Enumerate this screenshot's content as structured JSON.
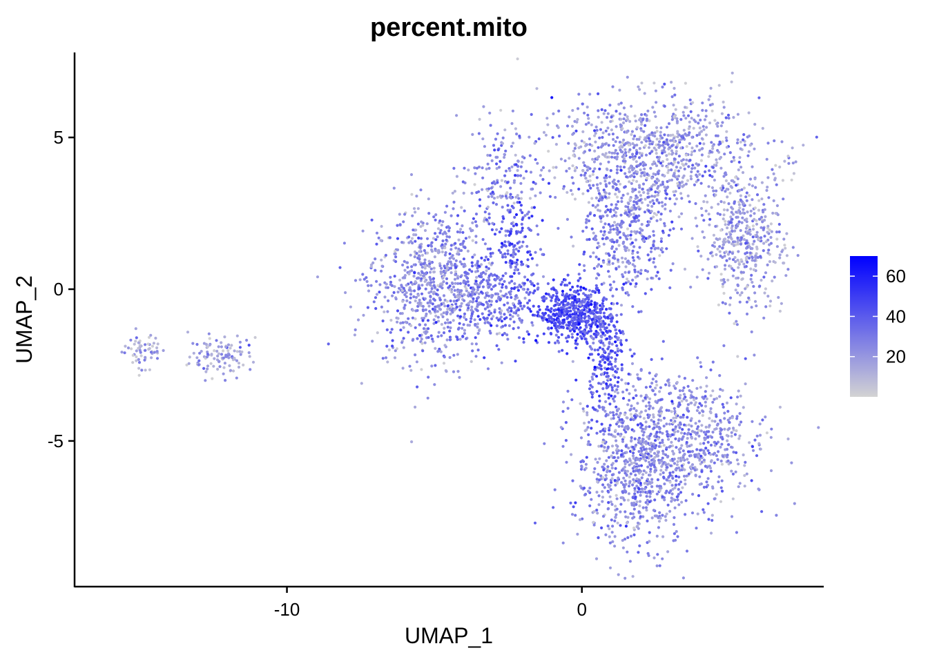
{
  "chart_data": {
    "type": "scatter",
    "title": "percent.mito",
    "xlabel": "UMAP_1",
    "ylabel": "UMAP_2",
    "xlim": [
      -17.2,
      8.2
    ],
    "ylim": [
      -9.8,
      7.8
    ],
    "x_ticks": [
      {
        "value": -10,
        "label": "-10"
      },
      {
        "value": 0,
        "label": "0"
      }
    ],
    "y_ticks": [
      {
        "value": 5,
        "label": "5"
      },
      {
        "value": 0,
        "label": "0"
      },
      {
        "value": -5,
        "label": "-5"
      }
    ],
    "grid": false,
    "legend": {
      "placement": "right",
      "min": 0,
      "max": 70,
      "low_color": "#d3d3d3",
      "high_color": "#0000ff",
      "ticks": [
        {
          "value": 60,
          "label": "60"
        },
        {
          "value": 40,
          "label": "40"
        },
        {
          "value": 20,
          "label": "20"
        }
      ]
    },
    "clusters": [
      {
        "cx": -14.9,
        "cy": -2.05,
        "sx": 0.35,
        "sy": 0.3,
        "n": 60,
        "mean": 14
      },
      {
        "cx": -12.2,
        "cy": -2.2,
        "sx": 0.55,
        "sy": 0.35,
        "n": 110,
        "mean": 16
      },
      {
        "cx": -5.2,
        "cy": 0.2,
        "sx": 1.0,
        "sy": 1.3,
        "n": 700,
        "mean": 22
      },
      {
        "cx": -3.2,
        "cy": -0.3,
        "sx": 0.9,
        "sy": 0.8,
        "n": 350,
        "mean": 30
      },
      {
        "cx": -0.3,
        "cy": -0.8,
        "sx": 0.6,
        "sy": 0.45,
        "n": 500,
        "mean": 44
      },
      {
        "cx": 0.8,
        "cy": -2.2,
        "sx": 0.35,
        "sy": 0.9,
        "n": 220,
        "mean": 38
      },
      {
        "cx": 1.9,
        "cy": -5.6,
        "sx": 1.05,
        "sy": 1.4,
        "n": 900,
        "mean": 24
      },
      {
        "cx": 4.1,
        "cy": -4.9,
        "sx": 1.1,
        "sy": 1.0,
        "n": 400,
        "mean": 22
      },
      {
        "cx": 2.3,
        "cy": 4.4,
        "sx": 1.9,
        "sy": 1.0,
        "n": 900,
        "mean": 20
      },
      {
        "cx": 1.4,
        "cy": 1.8,
        "sx": 0.75,
        "sy": 1.1,
        "n": 380,
        "mean": 28
      },
      {
        "cx": 5.5,
        "cy": 1.6,
        "sx": 0.65,
        "sy": 1.15,
        "n": 420,
        "mean": 18
      },
      {
        "cx": -2.8,
        "cy": 3.4,
        "sx": 0.7,
        "sy": 1.1,
        "n": 180,
        "mean": 26
      },
      {
        "cx": -2.2,
        "cy": 1.4,
        "sx": 0.35,
        "sy": 1.0,
        "n": 120,
        "mean": 40
      }
    ]
  }
}
